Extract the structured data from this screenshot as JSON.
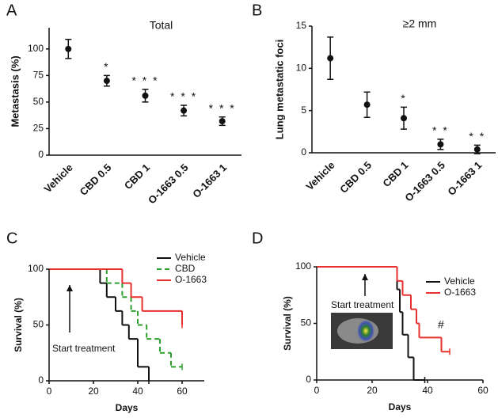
{
  "chart_data": [
    {
      "type": "errorbar",
      "panel": "A",
      "title": "Total",
      "y_label": "Metastasis (%)",
      "categories": [
        "Vehicle",
        "CBD 0.5",
        "CBD 1",
        "O-1663 0.5",
        "O-1663 1"
      ],
      "values": [
        100,
        70,
        56,
        42,
        32
      ],
      "errors": [
        9,
        5,
        6,
        5,
        4
      ],
      "significance": [
        null,
        "*",
        "* * *",
        "* * *",
        "* * *"
      ],
      "color": "#111111",
      "ylim": [
        0,
        120
      ],
      "yticks": [
        0,
        25,
        50,
        75,
        100
      ]
    },
    {
      "type": "errorbar",
      "panel": "B",
      "title": "≥2 mm",
      "y_label": "Lung metastatic foci",
      "categories": [
        "Vehicle",
        "CBD 0.5",
        "CBD 1",
        "O-1663 0.5",
        "O-1663 1"
      ],
      "values": [
        11.2,
        5.7,
        4.1,
        1.0,
        0.4
      ],
      "errors": [
        2.5,
        1.5,
        1.3,
        0.6,
        0.5
      ],
      "significance": [
        null,
        null,
        "*",
        "* *",
        "* *"
      ],
      "color": "#111111",
      "ylim": [
        0,
        15
      ],
      "yticks": [
        0,
        5,
        10,
        15
      ]
    },
    {
      "type": "step",
      "panel": "C",
      "x_label": "Days",
      "y_label": "Survival (%)",
      "annotations": [
        "Start treatment"
      ],
      "xlim": [
        0,
        70
      ],
      "xticks": [
        0,
        20,
        40,
        60
      ],
      "ylim": [
        0,
        100
      ],
      "yticks": [
        0,
        50,
        100
      ],
      "series": [
        {
          "name": "Vehicle",
          "color": "#111111",
          "dashed": false,
          "x": [
            0,
            23,
            26,
            30,
            33,
            36,
            40,
            45
          ],
          "values": [
            100,
            87.5,
            75,
            62.5,
            50,
            37.5,
            12.5,
            0
          ]
        },
        {
          "name": "CBD",
          "color": "#2ca02c",
          "dashed": true,
          "x": [
            0,
            26,
            33,
            37,
            40,
            44,
            50,
            55,
            60
          ],
          "values": [
            100,
            87.5,
            75,
            62.5,
            50,
            37.5,
            25,
            12.5,
            12.5
          ]
        },
        {
          "name": "O-1663",
          "color": "#e8312f",
          "dashed": false,
          "x": [
            0,
            33,
            37,
            42,
            60
          ],
          "values": [
            100,
            87.5,
            75,
            62.5,
            50
          ]
        }
      ]
    },
    {
      "type": "step",
      "panel": "D",
      "x_label": "Days",
      "y_label": "Survival (%)",
      "annotations": [
        "Start treatment",
        "#"
      ],
      "xlim": [
        0,
        60
      ],
      "xticks": [
        0,
        20,
        40,
        60
      ],
      "ylim": [
        0,
        100
      ],
      "yticks": [
        0,
        50,
        100
      ],
      "series": [
        {
          "name": "Vehicle",
          "color": "#111111",
          "dashed": false,
          "x": [
            0,
            29,
            30,
            31,
            33,
            35,
            39
          ],
          "values": [
            100,
            80,
            60,
            40,
            20,
            0,
            0
          ]
        },
        {
          "name": "O-1663",
          "color": "#e8312f",
          "dashed": false,
          "x": [
            0,
            29,
            31,
            34,
            36,
            37,
            45,
            48
          ],
          "values": [
            100,
            87.5,
            75,
            62.5,
            50,
            37.5,
            25,
            25
          ]
        }
      ]
    }
  ]
}
